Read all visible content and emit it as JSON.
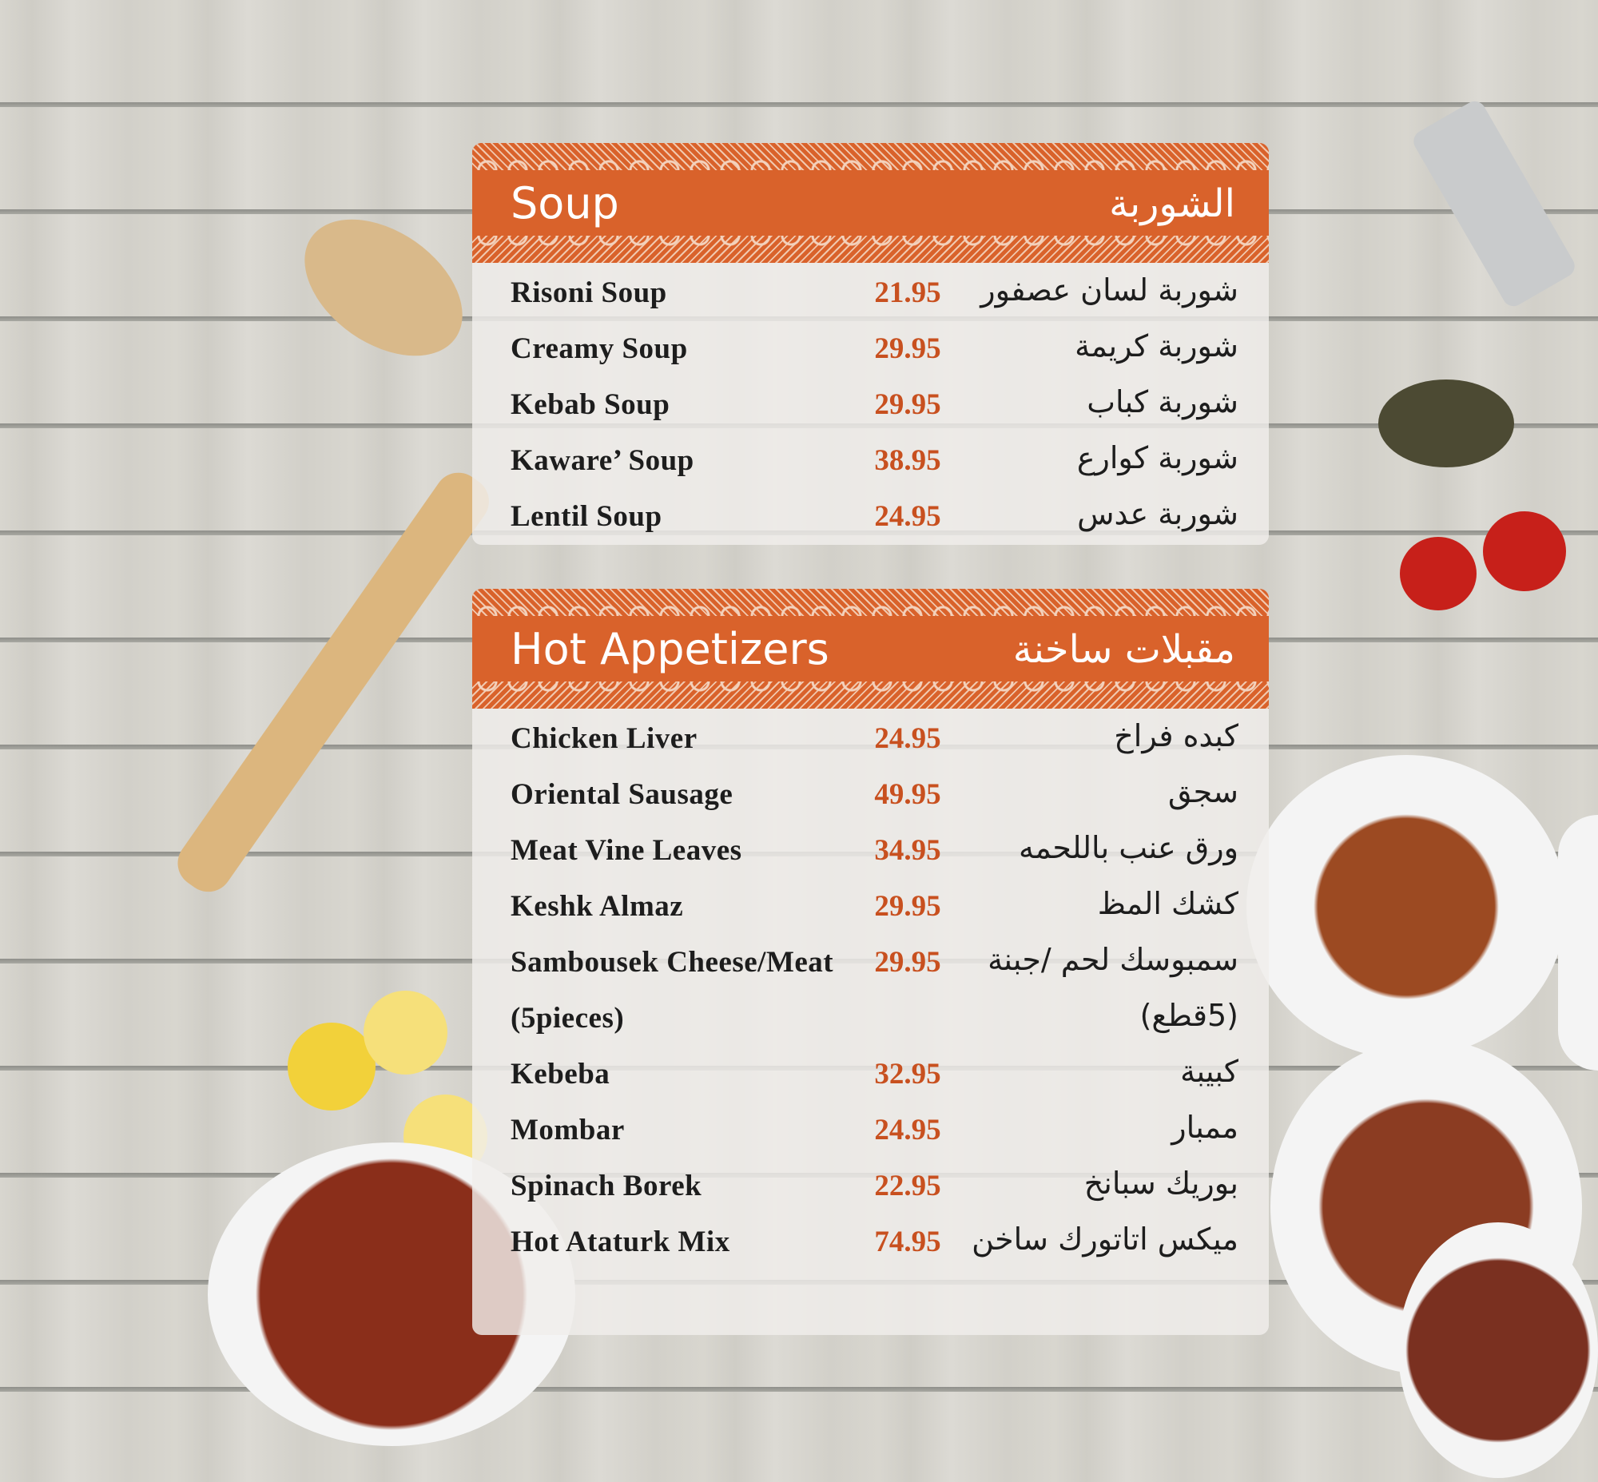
{
  "colors": {
    "header": "#d9622b",
    "price": "#c8501f"
  },
  "sections": [
    {
      "title_en": "Soup",
      "title_ar": "الشوربة",
      "items": [
        {
          "en": "Risoni Soup",
          "price": "21.95",
          "ar": "شوربة لسان عصفور"
        },
        {
          "en": "Creamy Soup",
          "price": "29.95",
          "ar": "شوربة كريمة"
        },
        {
          "en": "Kebab Soup",
          "price": "29.95",
          "ar": "شوربة كباب"
        },
        {
          "en": "Kaware’ Soup",
          "price": "38.95",
          "ar": "شوربة كوارع"
        },
        {
          "en": "Lentil Soup",
          "price": "24.95",
          "ar": "شوربة عدس"
        }
      ]
    },
    {
      "title_en": "Hot Appetizers",
      "title_ar": "مقبلات ساخنة",
      "items": [
        {
          "en": "Chicken Liver",
          "price": "24.95",
          "ar": "كبده فراخ"
        },
        {
          "en": "Oriental Sausage",
          "price": "49.95",
          "ar": "سجق"
        },
        {
          "en": "Meat Vine Leaves",
          "price": "34.95",
          "ar": "ورق عنب باللحمه"
        },
        {
          "en": "Keshk Almaz",
          "price": "29.95",
          "ar": "كشك المظ"
        },
        {
          "en": "Sambousek Cheese/Meat",
          "price": "29.95",
          "ar": "سمبوسك لحم /جبنة"
        },
        {
          "en": "(5pieces)",
          "price": "",
          "ar": "(5قطع)"
        },
        {
          "en": "Kebeba",
          "price": "32.95",
          "ar": "كبيبة"
        },
        {
          "en": "Mombar",
          "price": "24.95",
          "ar": "ممبار"
        },
        {
          "en": "Spinach Borek",
          "price": "22.95",
          "ar": "بوريك سبانخ"
        },
        {
          "en": "Hot Ataturk Mix",
          "price": "74.95",
          "ar": "ميكس اتاتورك ساخن"
        }
      ]
    }
  ]
}
